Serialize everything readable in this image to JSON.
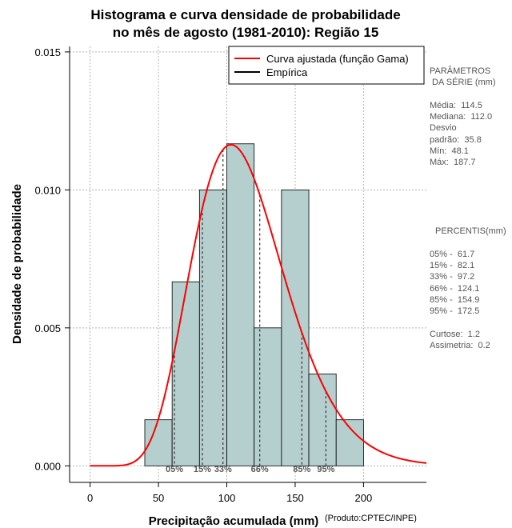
{
  "chart_data": {
    "type": "bar",
    "title_line1": "Histograma e curva densidade de probabilidade",
    "title_line2": "no mês de agosto (1981-2010): Região 15",
    "xlabel": "Precipitação acumulada (mm)",
    "ylabel": "Densidade de probabilidade",
    "credit": "(Produto:CPTEC/INPE)",
    "xlim": [
      -15,
      246
    ],
    "ylim": [
      -0.0006,
      0.0152
    ],
    "x_ticks": [
      0,
      50,
      100,
      150,
      200
    ],
    "x_tick_labels": [
      "0",
      "50",
      "100",
      "150",
      "200"
    ],
    "y_ticks": [
      0.0,
      0.005,
      0.01,
      0.015
    ],
    "y_tick_labels": [
      "0.000",
      "0.005",
      "0.010",
      "0.015"
    ],
    "grid": true,
    "bar_color": "#b5cece",
    "bins": [
      {
        "from": 40,
        "to": 60,
        "density": 0.00167
      },
      {
        "from": 60,
        "to": 80,
        "density": 0.00667
      },
      {
        "from": 80,
        "to": 100,
        "density": 0.01
      },
      {
        "from": 100,
        "to": 120,
        "density": 0.01167
      },
      {
        "from": 120,
        "to": 140,
        "density": 0.005
      },
      {
        "from": 140,
        "to": 160,
        "density": 0.01
      },
      {
        "from": 160,
        "to": 180,
        "density": 0.00333
      },
      {
        "from": 180,
        "to": 200,
        "density": 0.00167
      }
    ],
    "fitted_curve": {
      "name": "Curva ajustada (função Gama)",
      "color": "#ff0000",
      "shape": 10.2,
      "scale": 11.2
    },
    "empirical_name": "Empírica",
    "empirical_color": "#000000",
    "legend_position": "top-right",
    "percentile_lines": [
      {
        "label": "05%",
        "value": 61.7
      },
      {
        "label": "15%",
        "value": 82.1
      },
      {
        "label": "33%",
        "value": 97.2
      },
      {
        "label": "66%",
        "value": 124.1
      },
      {
        "label": "85%",
        "value": 154.9
      },
      {
        "label": "95%",
        "value": 172.5
      }
    ]
  },
  "side_panel": {
    "params_heading_1": "PARÂMETROS",
    "params_heading_2": " DA SÉRIE (mm)",
    "media": "Média:  114.5",
    "mediana": "Mediana:  112.0",
    "desvio_1": "Desvio",
    "desvio_2": "padrão:  35.8",
    "min": "Mín:  48.1",
    "max": "Máx:  187.7",
    "percentis_heading": "PERCENTIS(mm)",
    "p05": "05% -  61.7",
    "p15": "15% -  82.1",
    "p33": "33% -  97.2",
    "p66": "66% -  124.1",
    "p85": "85% -  154.9",
    "p95": "95% -  172.5",
    "curtose": "Curtose:  1.2",
    "assimetria": "Assimetria:  0.2"
  }
}
